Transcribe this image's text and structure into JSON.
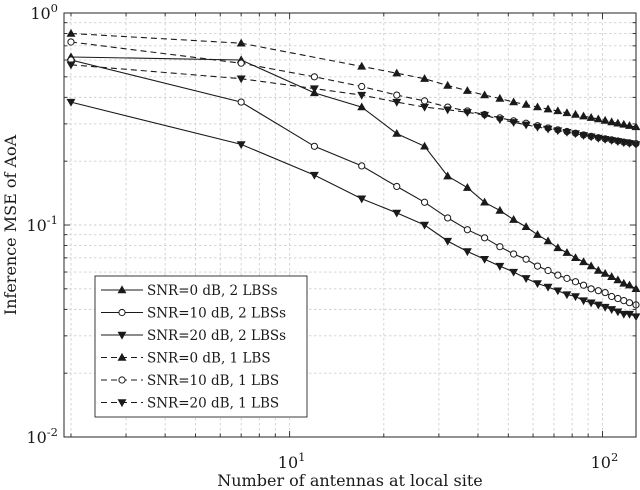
{
  "chart_data": {
    "type": "line",
    "title": "",
    "xlabel": "Number of antennas at local site",
    "ylabel": "Inference MSE of AoA",
    "xscale": "log",
    "yscale": "log",
    "xlim": [
      1.9,
      128
    ],
    "ylim": [
      0.01,
      1
    ],
    "grid": "on (major and minor, dashed)",
    "legend_position": "bottom-left",
    "x_ticks": [
      {
        "value": 10,
        "base": "10",
        "exp": "1"
      },
      {
        "value": 100,
        "base": "10",
        "exp": "2"
      }
    ],
    "y_ticks": [
      {
        "value": 0.01,
        "base": "10",
        "exp": "-2"
      },
      {
        "value": 0.1,
        "base": "10",
        "exp": "-1"
      },
      {
        "value": 1,
        "base": "10",
        "exp": "0"
      }
    ],
    "series": [
      {
        "name": "SNR=0 dB, 2 LBSs",
        "marker": "triangle-up",
        "linestyle": "solid",
        "color": "#1a1a1a",
        "x": [
          2,
          7,
          12,
          17,
          22,
          27,
          32,
          37,
          42,
          47,
          52,
          57,
          62,
          67,
          72,
          77,
          82,
          87,
          92,
          97,
          102,
          107,
          112,
          117,
          122,
          128
        ],
        "y": [
          0.62,
          0.6,
          0.42,
          0.36,
          0.27,
          0.235,
          0.17,
          0.15,
          0.128,
          0.117,
          0.106,
          0.098,
          0.09,
          0.084,
          0.078,
          0.074,
          0.07,
          0.067,
          0.064,
          0.061,
          0.059,
          0.057,
          0.055,
          0.053,
          0.052,
          0.05
        ]
      },
      {
        "name": "SNR=10 dB, 2 LBSs",
        "marker": "circle",
        "linestyle": "solid",
        "color": "#1a1a1a",
        "x": [
          2,
          7,
          12,
          17,
          22,
          27,
          32,
          37,
          42,
          47,
          52,
          57,
          62,
          67,
          72,
          77,
          82,
          87,
          92,
          97,
          102,
          107,
          112,
          117,
          122,
          128
        ],
        "y": [
          0.6,
          0.38,
          0.235,
          0.19,
          0.152,
          0.128,
          0.108,
          0.095,
          0.087,
          0.079,
          0.073,
          0.069,
          0.064,
          0.061,
          0.058,
          0.056,
          0.054,
          0.052,
          0.05,
          0.049,
          0.048,
          0.046,
          0.045,
          0.044,
          0.043,
          0.042
        ]
      },
      {
        "name": "SNR=20 dB, 2 LBSs",
        "marker": "triangle-down",
        "linestyle": "solid",
        "color": "#1a1a1a",
        "x": [
          2,
          7,
          12,
          17,
          22,
          27,
          32,
          37,
          42,
          47,
          52,
          57,
          62,
          67,
          72,
          77,
          82,
          87,
          92,
          97,
          102,
          107,
          112,
          117,
          122,
          128
        ],
        "y": [
          0.38,
          0.24,
          0.172,
          0.133,
          0.114,
          0.1,
          0.084,
          0.075,
          0.069,
          0.064,
          0.06,
          0.056,
          0.053,
          0.051,
          0.049,
          0.047,
          0.046,
          0.044,
          0.043,
          0.042,
          0.041,
          0.04,
          0.039,
          0.038,
          0.038,
          0.037
        ]
      },
      {
        "name": "SNR=0 dB, 1 LBS",
        "marker": "triangle-up",
        "linestyle": "dashed",
        "color": "#1a1a1a",
        "x": [
          2,
          7,
          17,
          22,
          27,
          32,
          37,
          42,
          47,
          52,
          57,
          62,
          67,
          72,
          77,
          82,
          87,
          92,
          97,
          102,
          107,
          112,
          117,
          122,
          128
        ],
        "y": [
          0.8,
          0.72,
          0.56,
          0.52,
          0.49,
          0.455,
          0.43,
          0.41,
          0.395,
          0.38,
          0.37,
          0.36,
          0.352,
          0.345,
          0.338,
          0.332,
          0.326,
          0.321,
          0.316,
          0.311,
          0.306,
          0.302,
          0.298,
          0.294,
          0.29
        ]
      },
      {
        "name": "SNR=10 dB, 1 LBS",
        "marker": "circle",
        "linestyle": "dashed",
        "color": "#1a1a1a",
        "x": [
          2,
          7,
          12,
          17,
          22,
          27,
          32,
          37,
          42,
          47,
          52,
          57,
          62,
          67,
          72,
          77,
          82,
          87,
          92,
          97,
          102,
          107,
          112,
          117,
          122,
          128
        ],
        "y": [
          0.73,
          0.58,
          0.5,
          0.45,
          0.41,
          0.385,
          0.36,
          0.345,
          0.332,
          0.32,
          0.31,
          0.302,
          0.294,
          0.287,
          0.281,
          0.276,
          0.271,
          0.266,
          0.262,
          0.258,
          0.255,
          0.252,
          0.249,
          0.246,
          0.244,
          0.242
        ]
      },
      {
        "name": "SNR=20 dB, 1 LBS",
        "marker": "triangle-down",
        "linestyle": "dashed",
        "color": "#1a1a1a",
        "x": [
          2,
          7,
          12,
          17,
          22,
          27,
          32,
          37,
          42,
          47,
          52,
          57,
          62,
          67,
          72,
          77,
          82,
          87,
          92,
          97,
          102,
          107,
          112,
          117,
          122,
          128
        ],
        "y": [
          0.57,
          0.49,
          0.44,
          0.41,
          0.38,
          0.36,
          0.35,
          0.34,
          0.33,
          0.315,
          0.305,
          0.297,
          0.29,
          0.284,
          0.279,
          0.274,
          0.27,
          0.265,
          0.261,
          0.257,
          0.254,
          0.251,
          0.248,
          0.245,
          0.243,
          0.24
        ]
      }
    ]
  }
}
